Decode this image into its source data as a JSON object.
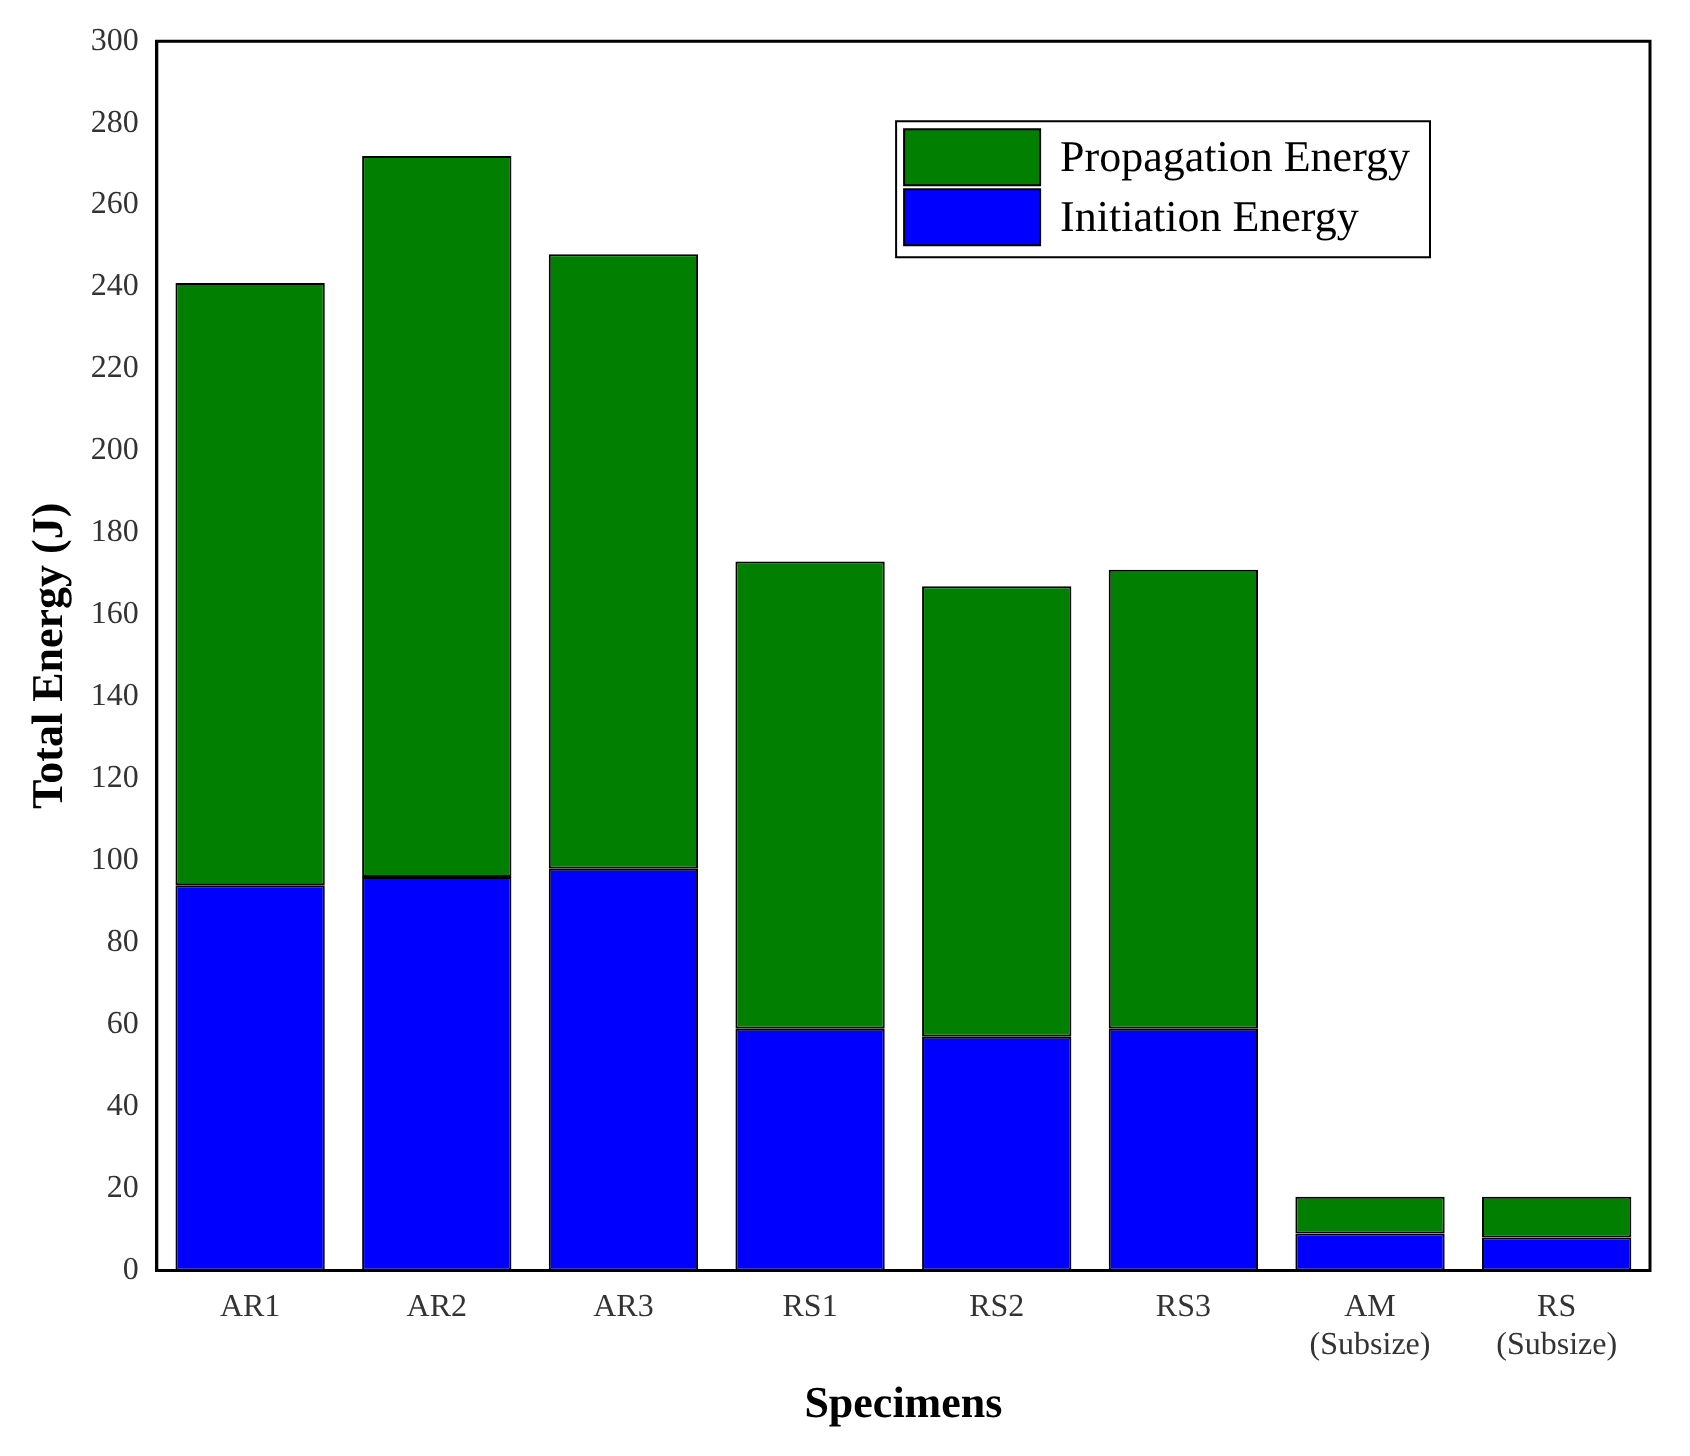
{
  "chart_data": {
    "type": "bar",
    "stacked": true,
    "xlabel": "Specimens",
    "ylabel": "Total Energy (J)",
    "categories": [
      "AR1",
      "AR2",
      "AR3",
      "RS1",
      "RS2",
      "RS3",
      "AM (Subsize)",
      "RS (Subsize)"
    ],
    "series": [
      {
        "name": "Initiation Energy",
        "color": "#0000ff",
        "values": [
          94,
          96,
          98,
          59,
          57,
          59,
          9,
          8
        ]
      },
      {
        "name": "Propagation Energy",
        "color": "#007f00",
        "values": [
          147,
          176,
          150,
          114,
          110,
          112,
          9,
          10
        ]
      }
    ],
    "ylim": [
      0,
      300
    ],
    "yticks": [
      0,
      20,
      40,
      60,
      80,
      100,
      120,
      140,
      160,
      180,
      200,
      220,
      240,
      260,
      280,
      300
    ],
    "grid": false,
    "legend": "top right"
  }
}
